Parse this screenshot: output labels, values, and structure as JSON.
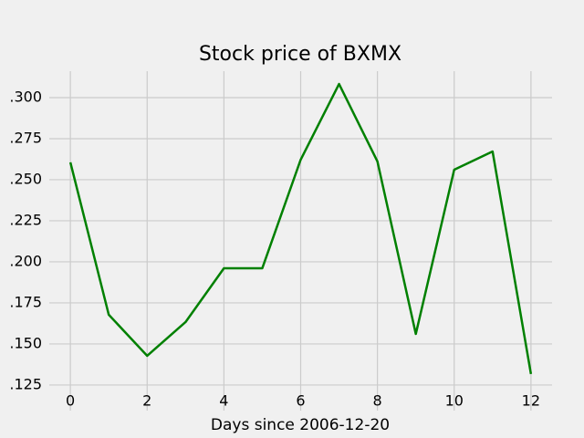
{
  "chart_data": {
    "type": "line",
    "title": "Stock price of BXMX",
    "xlabel": "Days since 2006-12-20",
    "x": [
      0,
      1,
      2,
      3,
      4,
      5,
      6,
      7,
      8,
      9,
      10,
      11,
      12
    ],
    "series": [
      {
        "color": "#008000",
        "values": [
          0.2606,
          0.1678,
          0.1428,
          0.1633,
          0.1961,
          0.1961,
          0.2622,
          0.3083,
          0.2611,
          0.1561,
          0.2561,
          0.2672,
          0.1317
        ]
      }
    ],
    "xlim": [
      -0.55,
      12.55
    ],
    "xticks": [
      0,
      2,
      4,
      6,
      8,
      10,
      12
    ],
    "ylim": [
      0.1094,
      0.3161
    ],
    "yticks": [
      {
        "value": 0.125,
        "label": ".125"
      },
      {
        "value": 0.15,
        "label": ".150"
      },
      {
        "value": 0.175,
        "label": ".175"
      },
      {
        "value": 0.2,
        "label": ".200"
      },
      {
        "value": 0.225,
        "label": ".225"
      },
      {
        "value": 0.25,
        "label": ".250"
      },
      {
        "value": 0.275,
        "label": ".275"
      },
      {
        "value": 0.3,
        "label": ".300"
      }
    ],
    "grid": true
  }
}
